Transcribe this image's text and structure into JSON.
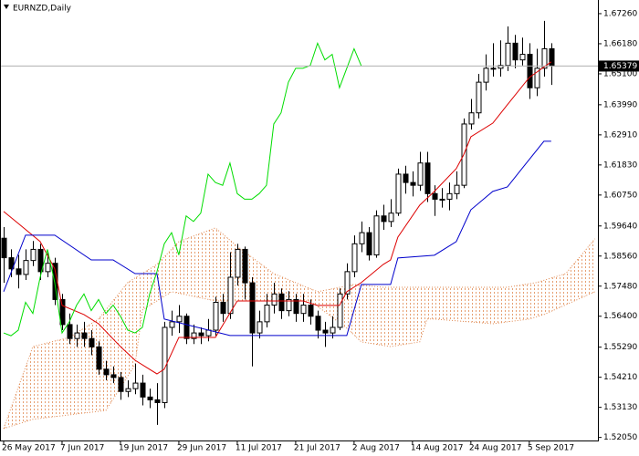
{
  "chart_data": {
    "type": "candlestick",
    "title": "EURNZD,Daily",
    "current_price": 1.65379,
    "xlim": [
      -0.5,
      81.4
    ],
    "ylim": [
      1.5194,
      1.6775
    ],
    "xticks": [
      {
        "value": 0,
        "label": "26 May 2017"
      },
      {
        "value": 8,
        "label": "7 Jun 2017"
      },
      {
        "value": 16,
        "label": "19 Jun 2017"
      },
      {
        "value": 24,
        "label": "29 Jun 2017"
      },
      {
        "value": 32,
        "label": "11 Jul 2017"
      },
      {
        "value": 40,
        "label": "21 Jul 2017"
      },
      {
        "value": 48,
        "label": "2 Aug 2017"
      },
      {
        "value": 56,
        "label": "14 Aug 2017"
      },
      {
        "value": 64,
        "label": "24 Aug 2017"
      },
      {
        "value": 72,
        "label": "5 Sep 2017"
      }
    ],
    "yticks": [
      {
        "value": 1.6726,
        "label": "1.67260"
      },
      {
        "value": 1.6618,
        "label": "1.66180"
      },
      {
        "value": 1.651,
        "label": "1.65100"
      },
      {
        "value": 1.6399,
        "label": "1.63990"
      },
      {
        "value": 1.6291,
        "label": "1.62910"
      },
      {
        "value": 1.6183,
        "label": "1.61830"
      },
      {
        "value": 1.6075,
        "label": "1.60750"
      },
      {
        "value": 1.5964,
        "label": "1.59640"
      },
      {
        "value": 1.5856,
        "label": "1.58560"
      },
      {
        "value": 1.5748,
        "label": "1.57480"
      },
      {
        "value": 1.564,
        "label": "1.56400"
      },
      {
        "value": 1.5529,
        "label": "1.55290"
      },
      {
        "value": 1.5421,
        "label": "1.54210"
      },
      {
        "value": 1.5313,
        "label": "1.53130"
      },
      {
        "value": 1.5205,
        "label": "1.52050"
      }
    ],
    "x": [
      0,
      1,
      2,
      3,
      4,
      5,
      6,
      7,
      8,
      9,
      10,
      11,
      12,
      13,
      14,
      15,
      16,
      17,
      18,
      19,
      20,
      21,
      22,
      23,
      24,
      25,
      26,
      27,
      28,
      29,
      30,
      31,
      32,
      33,
      34,
      35,
      36,
      37,
      38,
      39,
      40,
      41,
      42,
      43,
      44,
      45,
      46,
      47,
      48,
      49,
      50,
      51,
      52,
      53,
      54,
      55,
      56,
      57,
      58,
      59,
      60,
      61,
      62,
      63,
      64,
      65,
      66,
      67,
      68,
      69,
      70,
      71,
      72,
      73,
      74,
      75
    ],
    "open": [
      1.592,
      1.585,
      1.581,
      1.579,
      1.584,
      1.588,
      1.58,
      1.583,
      1.57,
      1.561,
      1.556,
      1.558,
      1.556,
      1.553,
      1.545,
      1.543,
      1.542,
      1.537,
      1.538,
      1.54,
      1.535,
      1.534,
      1.533,
      1.56,
      1.562,
      1.564,
      1.556,
      1.558,
      1.557,
      1.559,
      1.569,
      1.565,
      1.578,
      1.588,
      1.576,
      1.558,
      1.562,
      1.568,
      1.572,
      1.566,
      1.57,
      1.565,
      1.568,
      1.564,
      1.559,
      1.558,
      1.56,
      1.572,
      1.58,
      1.59,
      1.594,
      1.586,
      1.6,
      1.598,
      1.601,
      1.615,
      1.612,
      1.611,
      1.619,
      1.608,
      1.606,
      1.606,
      1.608,
      1.611,
      1.633,
      1.637,
      1.648,
      1.653,
      1.653,
      1.654,
      1.662,
      1.656,
      1.658,
      1.646,
      1.653,
      1.66
    ],
    "high": [
      1.596,
      1.588,
      1.586,
      1.588,
      1.591,
      1.59,
      1.587,
      1.585,
      1.572,
      1.565,
      1.561,
      1.562,
      1.559,
      1.555,
      1.548,
      1.546,
      1.544,
      1.541,
      1.547,
      1.543,
      1.538,
      1.54,
      1.562,
      1.566,
      1.568,
      1.565,
      1.561,
      1.56,
      1.563,
      1.571,
      1.572,
      1.587,
      1.59,
      1.589,
      1.578,
      1.566,
      1.572,
      1.576,
      1.574,
      1.573,
      1.572,
      1.572,
      1.57,
      1.566,
      1.562,
      1.564,
      1.574,
      1.583,
      1.593,
      1.598,
      1.596,
      1.602,
      1.604,
      1.606,
      1.617,
      1.618,
      1.616,
      1.623,
      1.623,
      1.611,
      1.61,
      1.612,
      1.616,
      1.635,
      1.642,
      1.651,
      1.658,
      1.662,
      1.663,
      1.668,
      1.665,
      1.664,
      1.662,
      1.66,
      1.67,
      1.662
    ],
    "low": [
      1.576,
      1.578,
      1.574,
      1.577,
      1.582,
      1.577,
      1.578,
      1.568,
      1.559,
      1.554,
      1.553,
      1.553,
      1.55,
      1.543,
      1.541,
      1.54,
      1.534,
      1.535,
      1.536,
      1.532,
      1.531,
      1.525,
      1.531,
      1.557,
      1.558,
      1.554,
      1.554,
      1.554,
      1.555,
      1.557,
      1.562,
      1.563,
      1.575,
      1.57,
      1.546,
      1.556,
      1.56,
      1.565,
      1.563,
      1.564,
      1.562,
      1.562,
      1.561,
      1.556,
      1.553,
      1.556,
      1.559,
      1.57,
      1.578,
      1.587,
      1.584,
      1.585,
      1.595,
      1.596,
      1.6,
      1.608,
      1.607,
      1.609,
      1.605,
      1.6,
      1.603,
      1.602,
      1.606,
      1.61,
      1.631,
      1.635,
      1.645,
      1.65,
      1.65,
      1.652,
      1.653,
      1.654,
      1.642,
      1.643,
      1.65,
      1.647
    ],
    "close": [
      1.585,
      1.581,
      1.579,
      1.584,
      1.588,
      1.58,
      1.583,
      1.57,
      1.561,
      1.556,
      1.558,
      1.556,
      1.553,
      1.545,
      1.543,
      1.542,
      1.537,
      1.538,
      1.54,
      1.535,
      1.534,
      1.533,
      1.56,
      1.562,
      1.564,
      1.556,
      1.558,
      1.557,
      1.559,
      1.569,
      1.565,
      1.578,
      1.588,
      1.576,
      1.558,
      1.562,
      1.568,
      1.572,
      1.566,
      1.57,
      1.565,
      1.568,
      1.564,
      1.559,
      1.558,
      1.56,
      1.572,
      1.58,
      1.59,
      1.594,
      1.586,
      1.6,
      1.598,
      1.601,
      1.615,
      1.612,
      1.611,
      1.619,
      1.608,
      1.606,
      1.606,
      1.608,
      1.611,
      1.633,
      1.637,
      1.648,
      1.653,
      1.653,
      1.654,
      1.662,
      1.656,
      1.658,
      1.646,
      1.653,
      1.66,
      1.65379
    ],
    "cloud": {
      "color": "#e08850",
      "span_a": {
        "x": [
          0,
          4,
          9,
          13,
          17,
          21,
          24,
          29,
          32,
          37,
          43,
          48,
          52,
          58,
          64,
          69,
          73,
          77,
          81
        ],
        "values": [
          1.5237,
          1.5531,
          1.5564,
          1.563,
          1.5761,
          1.5826,
          1.5908,
          1.5957,
          1.5891,
          1.5793,
          1.5728,
          1.5754,
          1.5744,
          1.5744,
          1.5744,
          1.5744,
          1.5761,
          1.5793,
          1.5918
        ]
      },
      "span_b": {
        "x": [
          0,
          4,
          9,
          14,
          18,
          19,
          23,
          29,
          37,
          42,
          47,
          49,
          53,
          57,
          58,
          59,
          67,
          72,
          74,
          81
        ],
        "values": [
          1.5237,
          1.527,
          1.5286,
          1.5302,
          1.5466,
          1.5662,
          1.5728,
          1.5695,
          1.5695,
          1.5695,
          1.5597,
          1.5548,
          1.5531,
          1.5548,
          1.563,
          1.563,
          1.5613,
          1.563,
          1.5646,
          1.5728
        ]
      }
    },
    "lines": [
      {
        "color": "#dd0000",
        "x": [
          0,
          2,
          5,
          7,
          8,
          11,
          13,
          16,
          18,
          21,
          22,
          24,
          29,
          32,
          34,
          38,
          41,
          43,
          46,
          47,
          49,
          52,
          53,
          54,
          57,
          59,
          62,
          63,
          64,
          67,
          69,
          72,
          75
        ],
        "values": [
          1.6016,
          1.5973,
          1.5908,
          1.581,
          1.5679,
          1.5646,
          1.5613,
          1.5531,
          1.5482,
          1.5433,
          1.545,
          1.5564,
          1.5564,
          1.5695,
          1.5695,
          1.5695,
          1.5695,
          1.5679,
          1.5679,
          1.5728,
          1.5761,
          1.5826,
          1.5842,
          1.5924,
          1.6039,
          1.6088,
          1.617,
          1.6219,
          1.6284,
          1.6333,
          1.6399,
          1.6497,
          1.6553
        ]
      },
      {
        "color": "#0000cc",
        "x": [
          0,
          3,
          7,
          12,
          15,
          18,
          21,
          22,
          31,
          47,
          49,
          53,
          54,
          59,
          62,
          64,
          67,
          69,
          71,
          74,
          75
        ],
        "values": [
          1.5728,
          1.5931,
          1.5931,
          1.5842,
          1.5842,
          1.5793,
          1.5793,
          1.563,
          1.5571,
          1.5571,
          1.5754,
          1.5754,
          1.5849,
          1.5859,
          1.5908,
          1.6022,
          1.6088,
          1.6104,
          1.617,
          1.6268,
          1.6268
        ]
      },
      {
        "color": "#00dd00",
        "x": [
          0,
          1,
          2,
          3,
          4,
          5,
          6,
          7,
          8,
          9,
          10,
          11,
          12,
          13,
          14,
          15,
          16,
          17,
          18,
          19,
          20,
          21,
          22,
          23,
          24,
          25,
          26,
          27,
          28,
          29,
          30,
          31,
          32,
          33,
          34,
          35,
          36,
          37,
          38,
          39,
          40,
          41,
          42,
          43,
          44,
          45,
          46,
          47,
          48,
          49
        ],
        "values": [
          1.558,
          1.557,
          1.559,
          1.569,
          1.565,
          1.578,
          1.588,
          1.576,
          1.558,
          1.562,
          1.568,
          1.572,
          1.566,
          1.57,
          1.565,
          1.568,
          1.564,
          1.559,
          1.558,
          1.56,
          1.572,
          1.58,
          1.59,
          1.594,
          1.586,
          1.6,
          1.598,
          1.601,
          1.615,
          1.612,
          1.611,
          1.619,
          1.608,
          1.606,
          1.606,
          1.608,
          1.611,
          1.633,
          1.637,
          1.648,
          1.653,
          1.653,
          1.654,
          1.662,
          1.656,
          1.658,
          1.646,
          1.653,
          1.66,
          1.65379
        ]
      }
    ]
  }
}
